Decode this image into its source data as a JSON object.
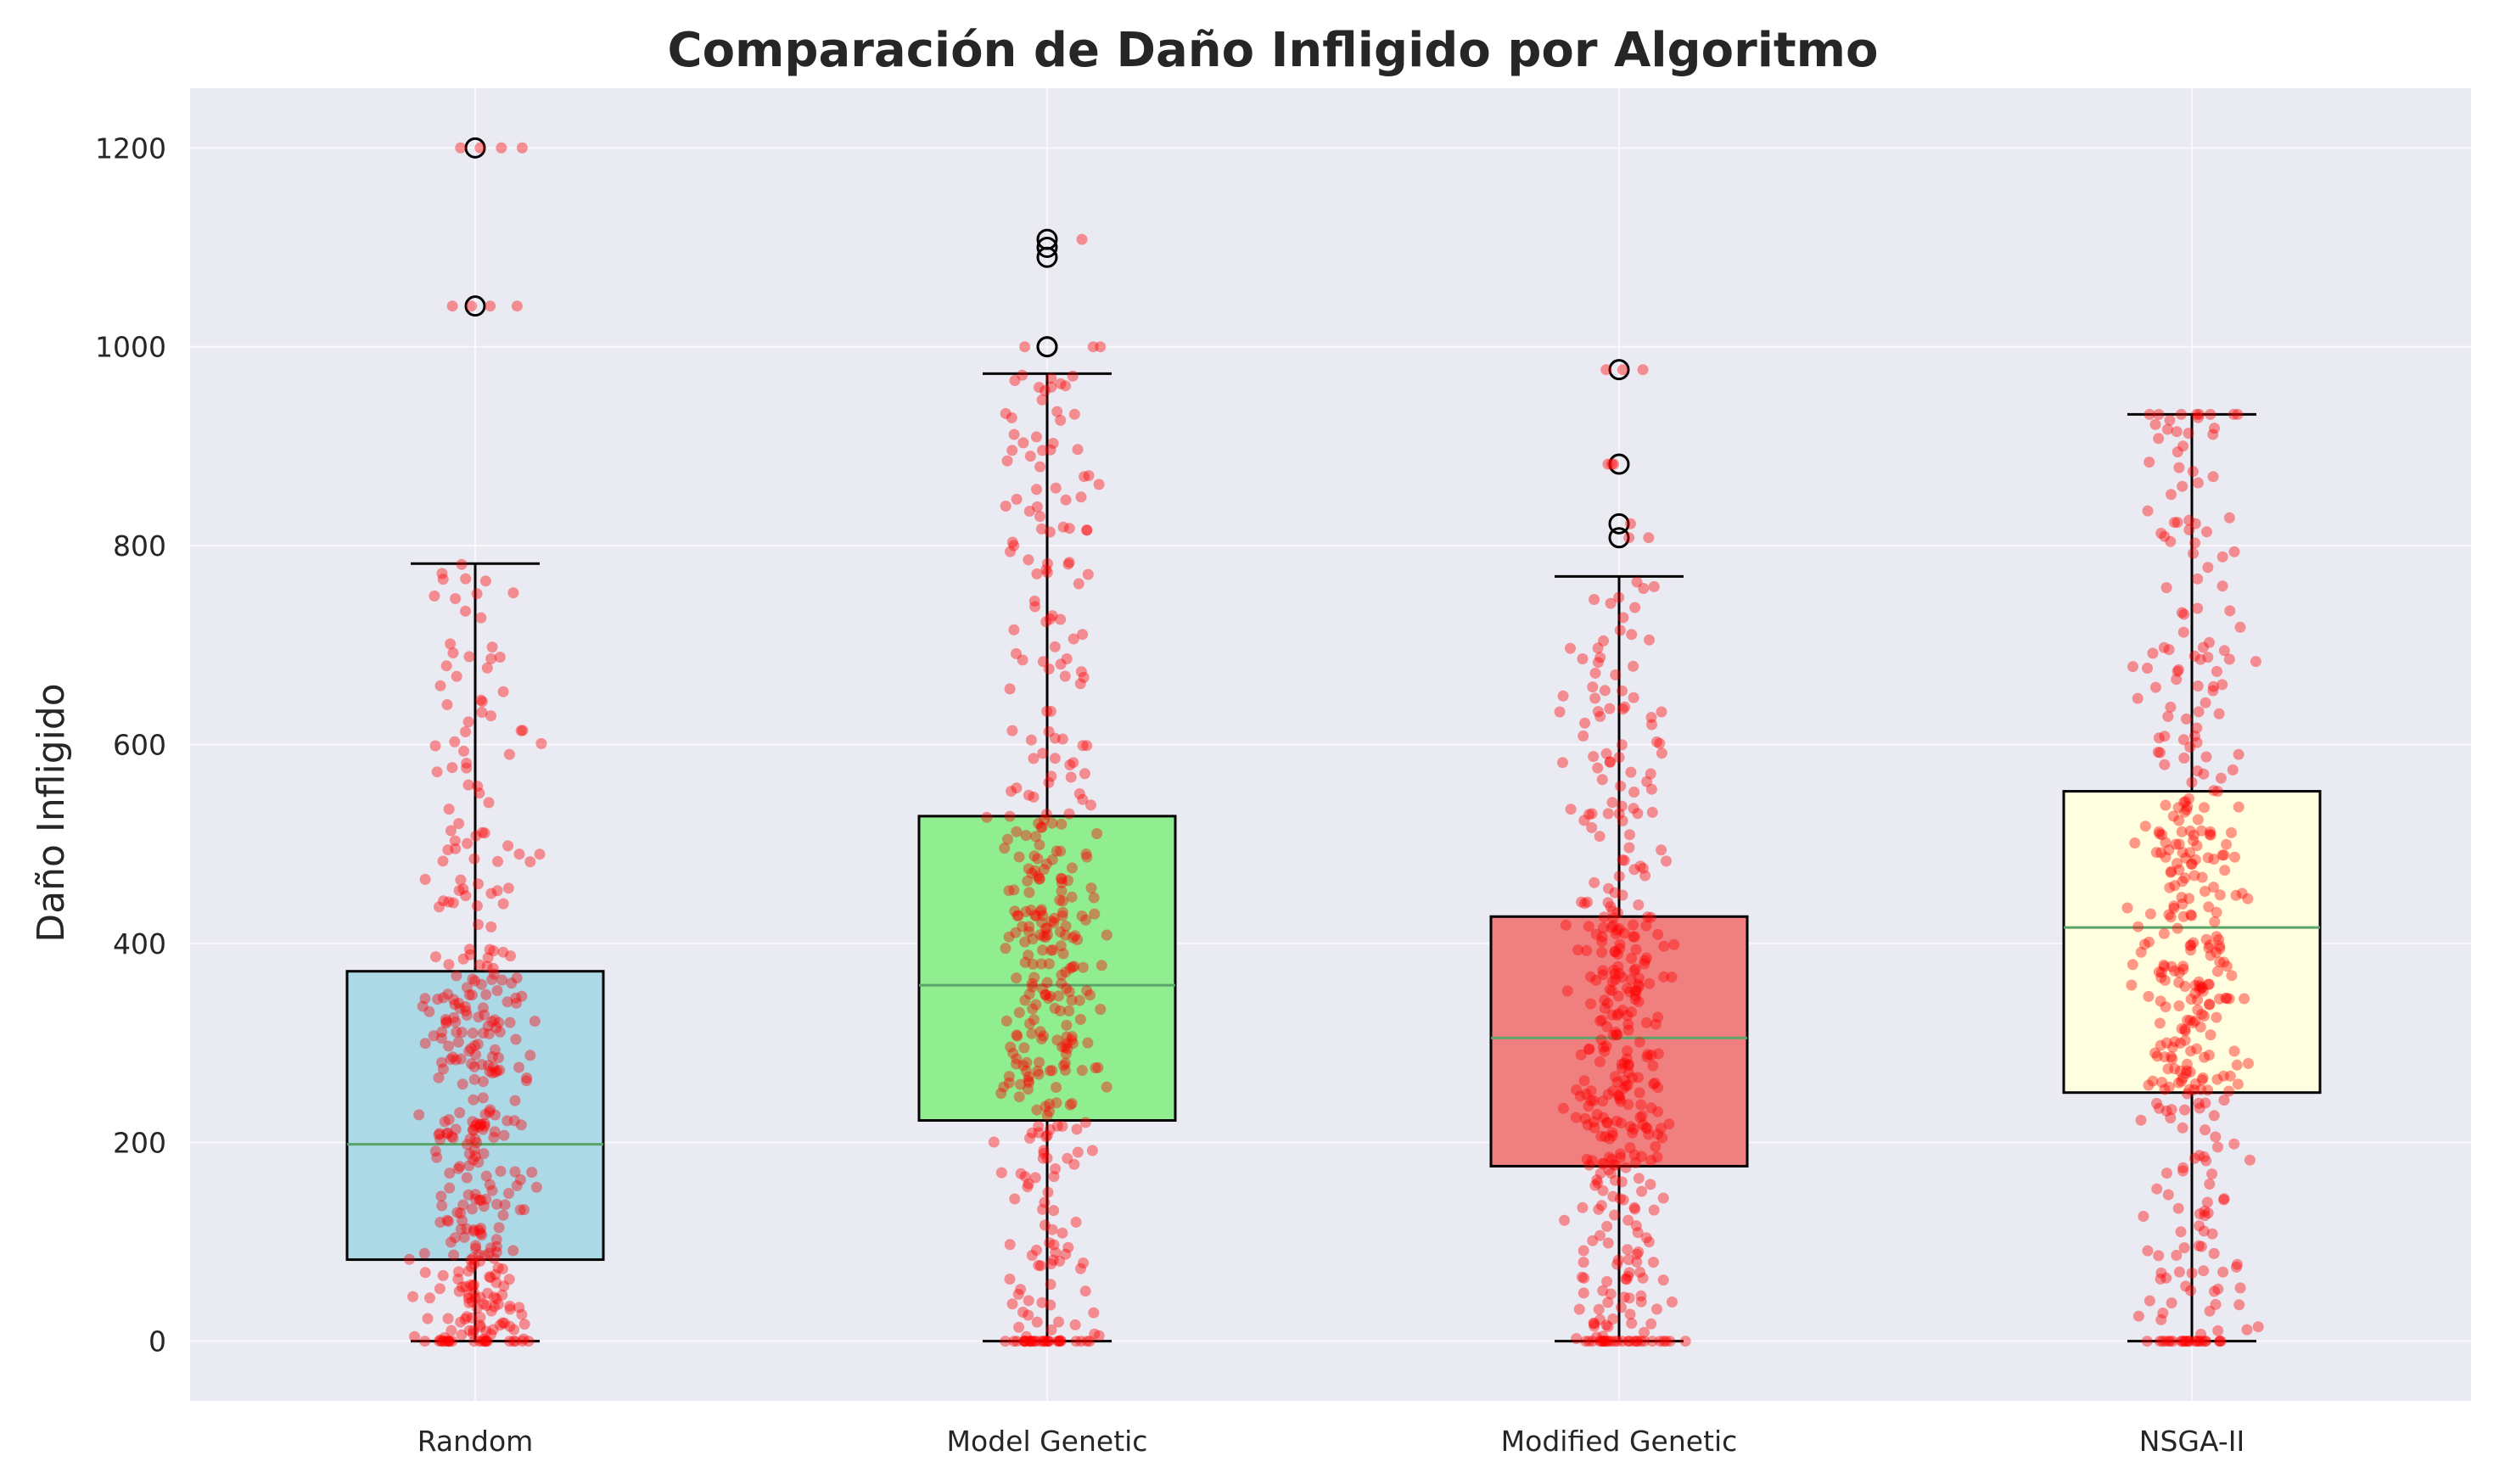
{
  "chart_data": {
    "type": "box",
    "title": "Comparación de Daño Infligido por Algoritmo",
    "xlabel": "",
    "ylabel": "Daño Infligido",
    "ylim": [
      -60,
      1260
    ],
    "yticks": [
      0,
      200,
      400,
      600,
      800,
      1000,
      1200
    ],
    "grid": true,
    "categories": [
      "Random",
      "Model Genetic",
      "Modified Genetic",
      "NSGA-II"
    ],
    "colors": [
      "#add8e6",
      "#90ee90",
      "#f08080",
      "#ffffe0"
    ],
    "median_color": "#5aa469",
    "point_color": "#ff0000",
    "boxes": [
      {
        "whisker_low": 0,
        "q1": 82,
        "median": 198,
        "q3": 372,
        "whisker_high": 782,
        "outliers": [
          1041,
          1200
        ]
      },
      {
        "whisker_low": 0,
        "q1": 222,
        "median": 358,
        "q3": 528,
        "whisker_high": 973,
        "outliers": [
          1000,
          1000,
          1090,
          1100,
          1108
        ]
      },
      {
        "whisker_low": 0,
        "q1": 176,
        "median": 305,
        "q3": 427,
        "whisker_high": 769,
        "outliers": [
          808,
          822,
          882,
          977
        ]
      },
      {
        "whisker_low": 0,
        "q1": 250,
        "median": 416,
        "q3": 553,
        "whisker_high": 932,
        "outliers": []
      }
    ],
    "jitter_points": 400
  }
}
